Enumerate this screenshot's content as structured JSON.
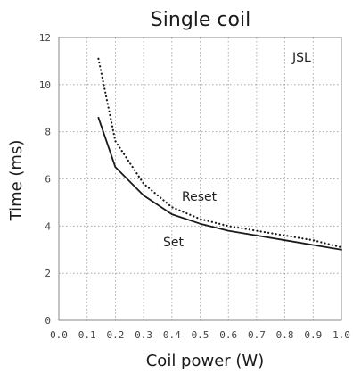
{
  "chart_data": {
    "type": "line",
    "title": "Single coil",
    "xlabel": "Coil power (W)",
    "ylabel": "Time (ms)",
    "xlim": [
      0,
      1.0
    ],
    "ylim": [
      0,
      12
    ],
    "x_ticks": [
      "0.0",
      "0.1",
      "0.2",
      "0.3",
      "0.4",
      "0.5",
      "0.6",
      "0.7",
      "0.8",
      "0.9",
      "1.0"
    ],
    "y_ticks": [
      "0",
      "2",
      "4",
      "6",
      "8",
      "10",
      "12"
    ],
    "grid": true,
    "brand_label": "JSL",
    "series": [
      {
        "name": "Set",
        "style": "solid",
        "color": "#1a1a1a",
        "x": [
          0.14,
          0.2,
          0.3,
          0.4,
          0.5,
          0.6,
          0.7,
          0.8,
          0.9,
          1.0
        ],
        "y": [
          8.6,
          6.5,
          5.3,
          4.5,
          4.1,
          3.8,
          3.6,
          3.4,
          3.2,
          3.0
        ]
      },
      {
        "name": "Reset",
        "style": "dotted",
        "color": "#1a1a1a",
        "x": [
          0.14,
          0.2,
          0.3,
          0.4,
          0.5,
          0.6,
          0.7,
          0.8,
          0.9,
          1.0
        ],
        "y": [
          11.1,
          7.6,
          5.8,
          4.8,
          4.3,
          4.0,
          3.8,
          3.6,
          3.4,
          3.1
        ]
      }
    ]
  }
}
